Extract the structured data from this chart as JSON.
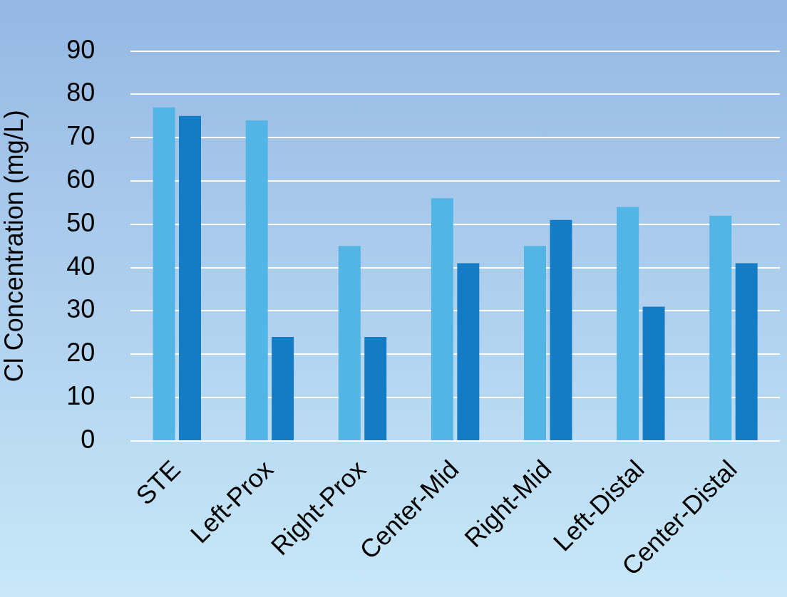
{
  "chart_data": {
    "type": "bar",
    "ylabel": "Cl Concentration (mg/L)",
    "categories": [
      "STE",
      "Left-Prox",
      "Right-Prox",
      "Center-Mid",
      "Right-Mid",
      "Left-Distal",
      "Center-Distal"
    ],
    "series": [
      {
        "color": "#53b4e6",
        "values": [
          77,
          74,
          45,
          56,
          45,
          54,
          52
        ]
      },
      {
        "color": "#147cc4",
        "values": [
          75,
          24,
          24,
          41,
          51,
          31,
          41
        ]
      }
    ],
    "ylim": [
      0,
      90
    ],
    "yticks": [
      0,
      10,
      20,
      30,
      40,
      50,
      60,
      70,
      80,
      90
    ],
    "grid": "y",
    "legend": false
  }
}
